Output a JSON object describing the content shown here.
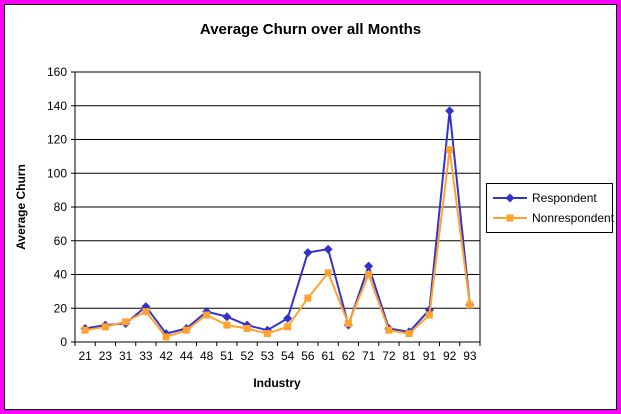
{
  "frame": {
    "border_color": "#FF00FF",
    "inner_border_color": "#000000",
    "background": "#FFFFFF"
  },
  "chart_data": {
    "type": "line",
    "title": "Average Churn over all Months",
    "xlabel": "Industry",
    "ylabel": "Average Churn",
    "ylim": [
      0,
      160
    ],
    "yticks": [
      0,
      20,
      40,
      60,
      80,
      100,
      120,
      140,
      160
    ],
    "grid": true,
    "gridline_color": "#000000",
    "plot_background": "#FFFFFF",
    "legend_position": "right",
    "categories": [
      "21",
      "23",
      "31",
      "33",
      "42",
      "44",
      "48",
      "51",
      "52",
      "53",
      "54",
      "56",
      "61",
      "62",
      "71",
      "72",
      "81",
      "91",
      "92",
      "93"
    ],
    "series": [
      {
        "name": "Respondent",
        "color": "#3333CC",
        "marker": "diamond",
        "values": [
          8,
          10,
          11,
          21,
          5,
          8,
          18,
          15,
          10,
          7,
          14,
          53,
          55,
          10,
          45,
          8,
          6,
          19,
          137,
          22
        ]
      },
      {
        "name": "Nonrespondent",
        "color": "#FFA22E",
        "marker": "square",
        "values": [
          7,
          9,
          12,
          18,
          3,
          7,
          16,
          10,
          8,
          5,
          9,
          26,
          41,
          11,
          40,
          7,
          5,
          16,
          114,
          22
        ]
      }
    ]
  }
}
